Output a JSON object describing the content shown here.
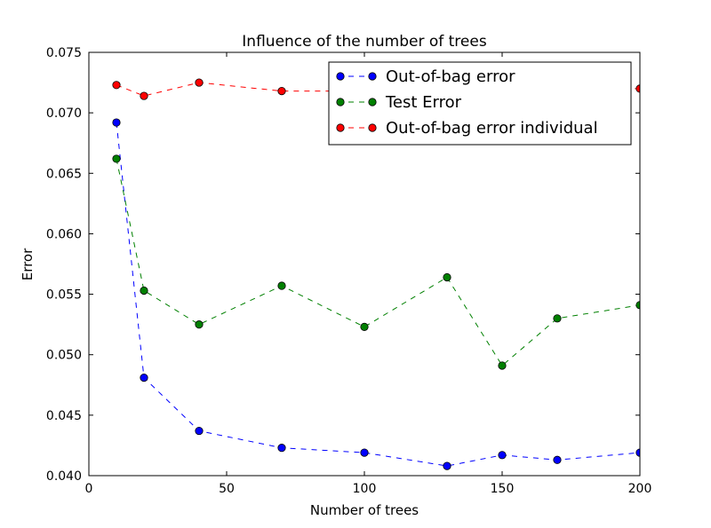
{
  "chart_data": {
    "type": "line",
    "title": "Influence of the number of trees",
    "xlabel": "Number of trees",
    "ylabel": "Error",
    "xlim": [
      0,
      200
    ],
    "ylim": [
      0.04,
      0.075
    ],
    "xticks": [
      0,
      50,
      100,
      150,
      200
    ],
    "xtick_labels": [
      "0",
      "50",
      "100",
      "150",
      "200"
    ],
    "yticks": [
      0.04,
      0.045,
      0.05,
      0.055,
      0.06,
      0.065,
      0.07,
      0.075
    ],
    "ytick_labels": [
      "0.040",
      "0.045",
      "0.050",
      "0.055",
      "0.060",
      "0.065",
      "0.070",
      "0.075"
    ],
    "grid": false,
    "legend_position": "top-right",
    "x": [
      10,
      20,
      40,
      70,
      100,
      130,
      150,
      170,
      200
    ],
    "series": [
      {
        "name": "Out-of-bag error",
        "color": "#0000ff",
        "values": [
          0.0692,
          0.0481,
          0.0437,
          0.0423,
          0.0419,
          0.0408,
          0.0417,
          0.0413,
          0.0419
        ]
      },
      {
        "name": "Test Error",
        "color": "#008000",
        "values": [
          0.0662,
          0.0553,
          0.0525,
          0.0557,
          0.0523,
          0.0564,
          0.0491,
          0.053,
          0.0541
        ]
      },
      {
        "name": "Out-of-bag error individual",
        "color": "#ff0000",
        "values": [
          0.0723,
          0.0714,
          0.0725,
          0.0718,
          0.0718,
          0.072,
          0.0721,
          0.072,
          0.072
        ]
      }
    ]
  }
}
